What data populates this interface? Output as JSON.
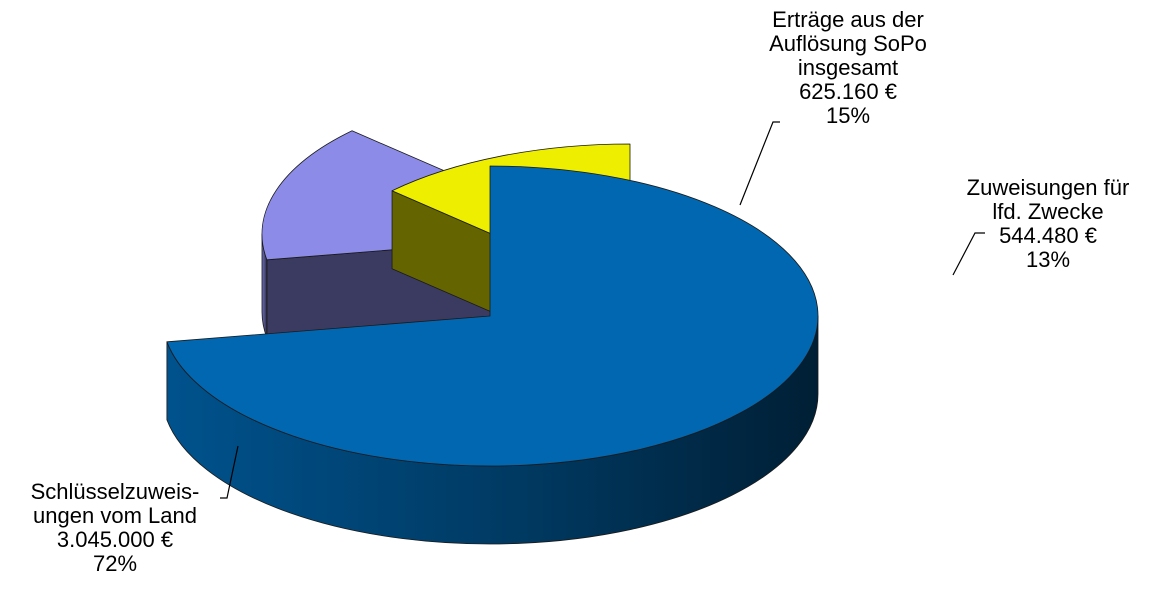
{
  "chart_data": {
    "type": "pie",
    "style": "3d-exploded",
    "legend": "none",
    "slices": [
      {
        "key": "schluessel",
        "label_lines": [
          "Schlüsselzuweis-",
          "ungen vom Land"
        ],
        "value": 3045000,
        "value_label": "3.045.000 €",
        "percent_label": "72%",
        "color": "#0067B0"
      },
      {
        "key": "ertraege",
        "label_lines": [
          "Erträge aus der",
          "Auflösung SoPo",
          "insgesamt"
        ],
        "value": 625160,
        "value_label": "625.160 €",
        "percent_label": "15%",
        "color": "#8C8CE8"
      },
      {
        "key": "zuweisungen",
        "label_lines": [
          "Zuweisungen für",
          "lfd. Zwecke"
        ],
        "value": 544480,
        "value_label": "544.480 €",
        "percent_label": "13%",
        "color": "#EEEE00"
      }
    ]
  }
}
